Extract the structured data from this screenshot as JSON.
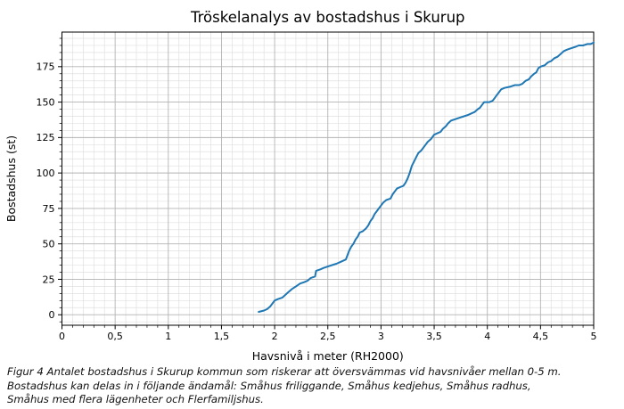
{
  "figure": {
    "caption_lines": [
      "Figur 4 Antalet bostadshus i Skurup kommun som riskerar att översvämmas vid havsnivåer mellan 0-5 m.",
      "Bostadshus kan delas in i följande ändamål: Småhus friliggande, Småhus kedjehus, Småhus radhus,",
      "Småhus med flera lägenheter och Flerfamiljshus."
    ]
  },
  "chart_data": {
    "type": "line",
    "title": "Tröskelanalys av bostadshus i Skurup",
    "xlabel": "Havsnivå i meter (RH2000)",
    "ylabel": "Bostadshus (st)",
    "xlim": [
      0,
      5
    ],
    "ylim": [
      -7.4,
      199.4
    ],
    "x_tick_values": [
      0,
      0.5,
      1,
      1.5,
      2,
      2.5,
      3,
      3.5,
      4,
      4.5,
      5
    ],
    "x_tick_labels": [
      "0",
      "0,5",
      "1",
      "1,5",
      "2",
      "2,5",
      "3",
      "3,5",
      "4",
      "4,5",
      "5"
    ],
    "y_tick_values": [
      0,
      25,
      50,
      75,
      100,
      125,
      150,
      175
    ],
    "y_tick_labels": [
      "0",
      "25",
      "50",
      "75",
      "100",
      "125",
      "150",
      "175"
    ],
    "x_minor_step": 0.1,
    "y_minor_step": 5,
    "grid": "major+minor",
    "legend": "none",
    "colors": {
      "line": "#1f77b4",
      "grid_major": "#b3b3b3",
      "grid_minor": "#e0e0e0",
      "axis": "#000000",
      "text": "#000000"
    },
    "series": [
      {
        "name": "Bostadshus",
        "x": [
          1.85,
          1.9,
          1.93,
          1.96,
          1.98,
          2.0,
          2.03,
          2.07,
          2.1,
          2.13,
          2.16,
          2.2,
          2.24,
          2.28,
          2.31,
          2.34,
          2.38,
          2.39,
          2.43,
          2.46,
          2.5,
          2.54,
          2.58,
          2.61,
          2.64,
          2.67,
          2.68,
          2.7,
          2.72,
          2.74,
          2.76,
          2.78,
          2.8,
          2.83,
          2.86,
          2.88,
          2.9,
          2.92,
          2.94,
          2.96,
          2.98,
          3.0,
          3.02,
          3.05,
          3.09,
          3.11,
          3.13,
          3.15,
          3.18,
          3.21,
          3.23,
          3.25,
          3.27,
          3.29,
          3.31,
          3.33,
          3.35,
          3.38,
          3.4,
          3.42,
          3.44,
          3.47,
          3.5,
          3.53,
          3.56,
          3.58,
          3.61,
          3.63,
          3.66,
          3.7,
          3.74,
          3.78,
          3.82,
          3.85,
          3.88,
          3.91,
          3.93,
          3.95,
          3.97,
          4.02,
          4.05,
          4.07,
          4.09,
          4.11,
          4.13,
          4.16,
          4.22,
          4.26,
          4.3,
          4.33,
          4.36,
          4.39,
          4.41,
          4.44,
          4.46,
          4.48,
          4.5,
          4.54,
          4.57,
          4.6,
          4.63,
          4.66,
          4.69,
          4.72,
          4.75,
          4.79,
          4.83,
          4.86,
          4.9,
          4.94,
          4.97,
          5.0
        ],
        "y": [
          2,
          3,
          4,
          6,
          8,
          10,
          11,
          12,
          14,
          16,
          18,
          20,
          22,
          23,
          24,
          26,
          27,
          31,
          32,
          33,
          34,
          35,
          36,
          37,
          38,
          39,
          41,
          45,
          48,
          50,
          53,
          55,
          58,
          59,
          61,
          63,
          66,
          68,
          71,
          73,
          75,
          77,
          79,
          81,
          82,
          85,
          87,
          89,
          90,
          91,
          93,
          96,
          100,
          105,
          108,
          111,
          114,
          116,
          118,
          120,
          122,
          124,
          127,
          128,
          129,
          131,
          133,
          135,
          137,
          138,
          139,
          140,
          141,
          142,
          143,
          145,
          146,
          148,
          150,
          150,
          151,
          153,
          155,
          157,
          159,
          160,
          161,
          162,
          162,
          163,
          165,
          166,
          168,
          170,
          171,
          174,
          175,
          176,
          178,
          179,
          181,
          182,
          184,
          186,
          187,
          188,
          189,
          190,
          190,
          191,
          191,
          192
        ]
      }
    ]
  }
}
